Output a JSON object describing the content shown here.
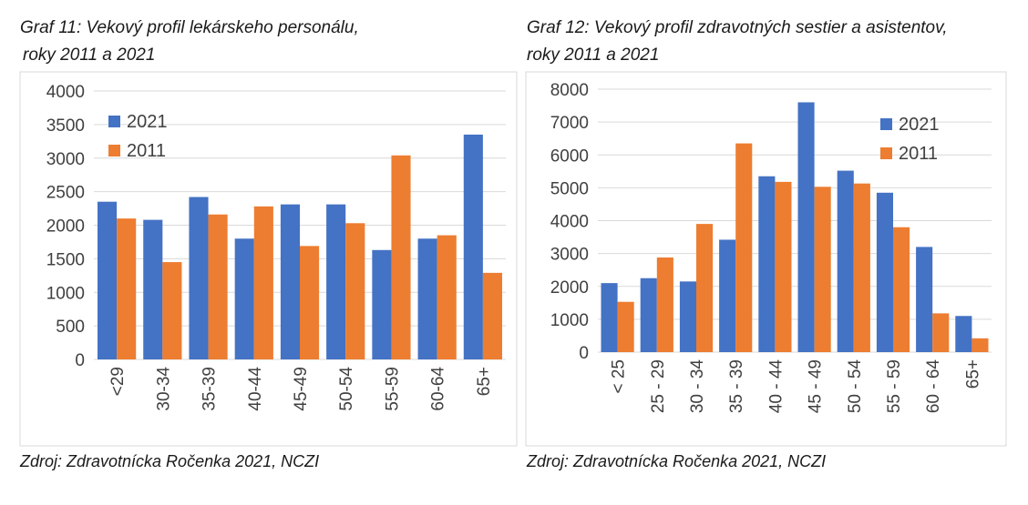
{
  "chart_data": [
    {
      "type": "bar",
      "title_lines": [
        "Graf 11: Vekový profil lekárskeho personálu,",
        "roky 2011 a 2021"
      ],
      "categories": [
        "<29",
        "30-34",
        "35-39",
        "40-44",
        "45-49",
        "50-54",
        "55-59",
        "60-64",
        "65+"
      ],
      "series": [
        {
          "name": "2021",
          "color": "#4472c4",
          "values": [
            2350,
            2080,
            2420,
            1800,
            2310,
            2310,
            1630,
            1800,
            3350
          ]
        },
        {
          "name": "2011",
          "color": "#ed7d31",
          "values": [
            2100,
            1450,
            2160,
            2280,
            1690,
            2030,
            3040,
            1850,
            1290
          ]
        }
      ],
      "yticks": [
        0,
        500,
        1000,
        1500,
        2000,
        2500,
        3000,
        3500,
        4000
      ],
      "ylim": [
        0,
        4000
      ],
      "grid": true,
      "legend_position": "top-left",
      "source": "Zdroj: Zdravotnícka Ročenka 2021, NCZI"
    },
    {
      "type": "bar",
      "title_lines": [
        "Graf 12: Vekový profil zdravotných sestier a asistentov,",
        "roky 2011 a 2021"
      ],
      "categories": [
        "< 25",
        "25 - 29",
        "30 - 34",
        "35 - 39",
        "40 - 44",
        "45 - 49",
        "50 - 54",
        "55 - 59",
        "60 - 64",
        "65+"
      ],
      "series": [
        {
          "name": "2021",
          "color": "#4472c4",
          "values": [
            2100,
            2250,
            2150,
            3420,
            5350,
            7600,
            5520,
            4850,
            3200,
            1100
          ]
        },
        {
          "name": "2011",
          "color": "#ed7d31",
          "values": [
            1530,
            2880,
            3900,
            6350,
            5180,
            5030,
            5130,
            3800,
            1180,
            420
          ]
        }
      ],
      "yticks": [
        0,
        1000,
        2000,
        3000,
        4000,
        5000,
        6000,
        7000,
        8000
      ],
      "ylim": [
        0,
        8000
      ],
      "grid": true,
      "legend_position": "top-right",
      "source": "Zdroj: Zdravotnícka Ročenka 2021, NCZI"
    }
  ]
}
